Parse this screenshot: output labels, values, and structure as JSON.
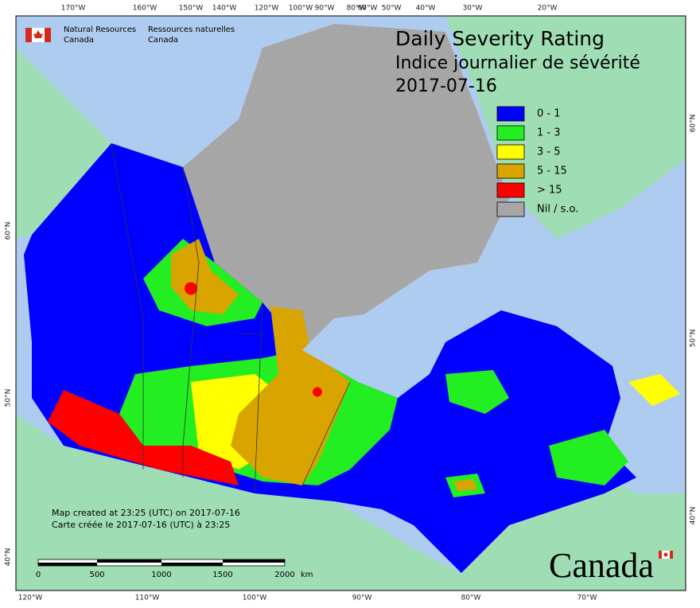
{
  "header": {
    "agency_en": [
      "Natural Resources",
      "Canada"
    ],
    "agency_fr": [
      "Ressources naturelles",
      "Canada"
    ]
  },
  "title": [
    "Daily Severity Rating",
    "Indice journalier de sévérité",
    "2017-07-16"
  ],
  "legend": [
    {
      "label": "0 - 1",
      "color": "#0000ff"
    },
    {
      "label": "1 - 3",
      "color": "#22ee22"
    },
    {
      "label": "3 - 5",
      "color": "#ffff00"
    },
    {
      "label": "5 - 15",
      "color": "#d9a400"
    },
    {
      "label": "> 15",
      "color": "#ff0000"
    },
    {
      "label": "Nil / s.o.",
      "color": "#a6a6a6"
    }
  ],
  "graticule": {
    "top": [
      "170°W",
      "160°W",
      "150°W",
      "140°W",
      "120°W",
      "100°W",
      "90°W",
      "80°W",
      "60°W",
      "50°W",
      "40°W",
      "30°W",
      "20°W"
    ],
    "bottom": [
      "120°W",
      "110°W",
      "100°W",
      "90°W",
      "80°W",
      "70°W"
    ],
    "left": [
      "60°N",
      "50°N",
      "40°N"
    ],
    "right": [
      "60°N",
      "50°N",
      "40°N"
    ]
  },
  "credits": [
    "Map created at 23:25 (UTC) on 2017-07-16",
    "Carte créée le 2017-07-16 (UTC) à 23:25"
  ],
  "scale_bar": {
    "labels": [
      "0",
      "500",
      "1000",
      "1500",
      "2000"
    ],
    "unit": "km"
  },
  "wordmark": "Canada"
}
